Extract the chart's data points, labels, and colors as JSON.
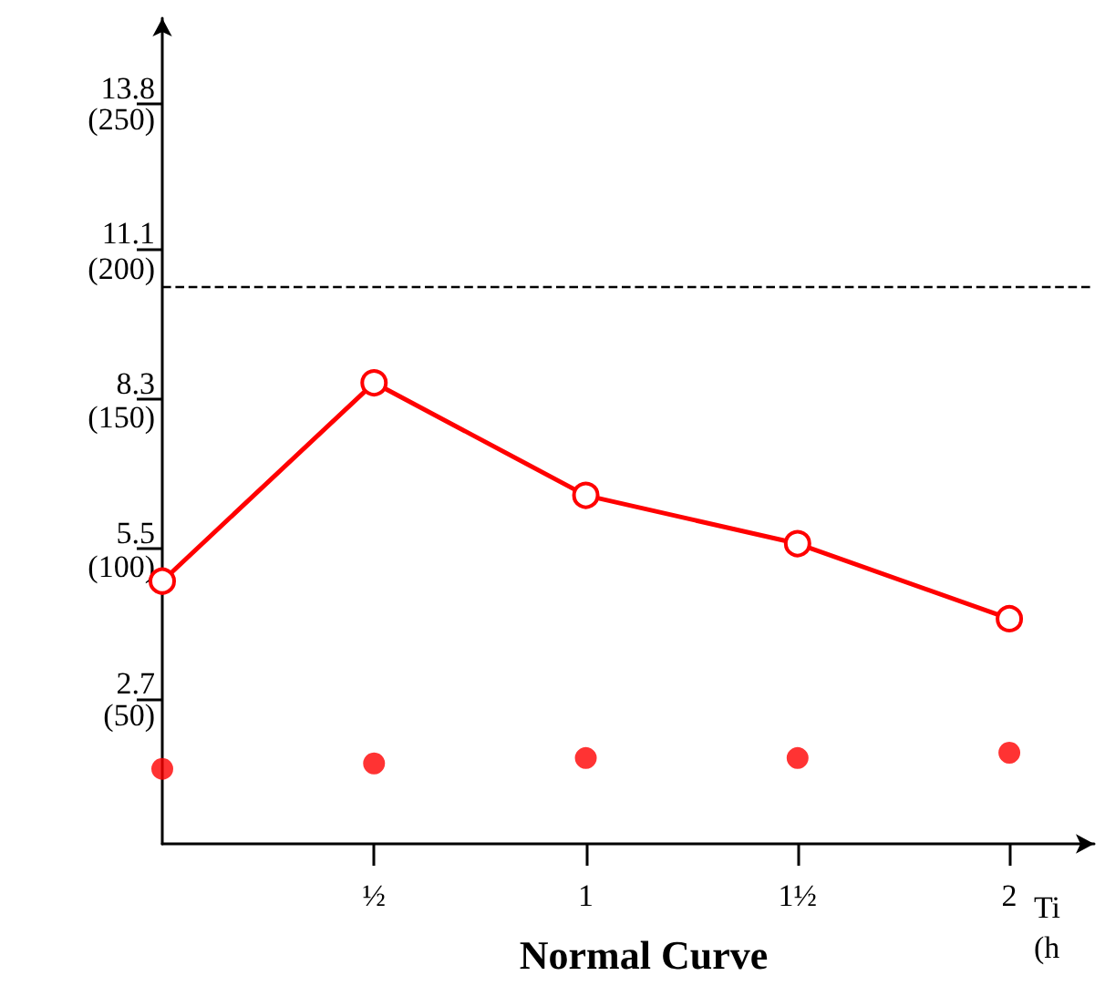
{
  "chart_data": {
    "type": "line",
    "title": "Normal Curve",
    "xlabel": "Ti\n(h",
    "x": [
      0,
      0.5,
      1,
      1.5,
      2
    ],
    "series": [
      {
        "type": "line",
        "color": "#ff0000",
        "values": [
          4.9,
          8.6,
          6.5,
          5.6,
          4.2
        ],
        "marker": "circle",
        "line_style": "solid"
      },
      {
        "type": "scatter",
        "color": "#ff0000",
        "values": [
          1.4,
          1.5,
          1.6,
          1.6,
          1.7
        ],
        "marker": "circle"
      }
    ],
    "xlim": [
      0,
      2.2
    ],
    "xticks": [
      {
        "value": 0.5,
        "label": "½"
      },
      1,
      {
        "value": 1.5,
        "label": "1½"
      },
      2
    ],
    "ylim": [
      0,
      15.4
    ],
    "yticks": [
      2.7,
      5.5,
      8.3,
      11.1,
      13.8
    ],
    "y2lim": [
      0,
      277
    ],
    "y2ticks": [
      {
        "value": 50,
        "label": "(50)"
      },
      {
        "value": 100,
        "label": "(100)"
      },
      {
        "value": 150,
        "label": "(150)"
      },
      {
        "value": 200,
        "label": "(200)"
      },
      {
        "value": 250,
        "label": "(250)"
      }
    ],
    "ref_lines": [
      {
        "axis": "y",
        "value": 10.4,
        "color": "#000000",
        "line_style": "dashed"
      }
    ]
  }
}
